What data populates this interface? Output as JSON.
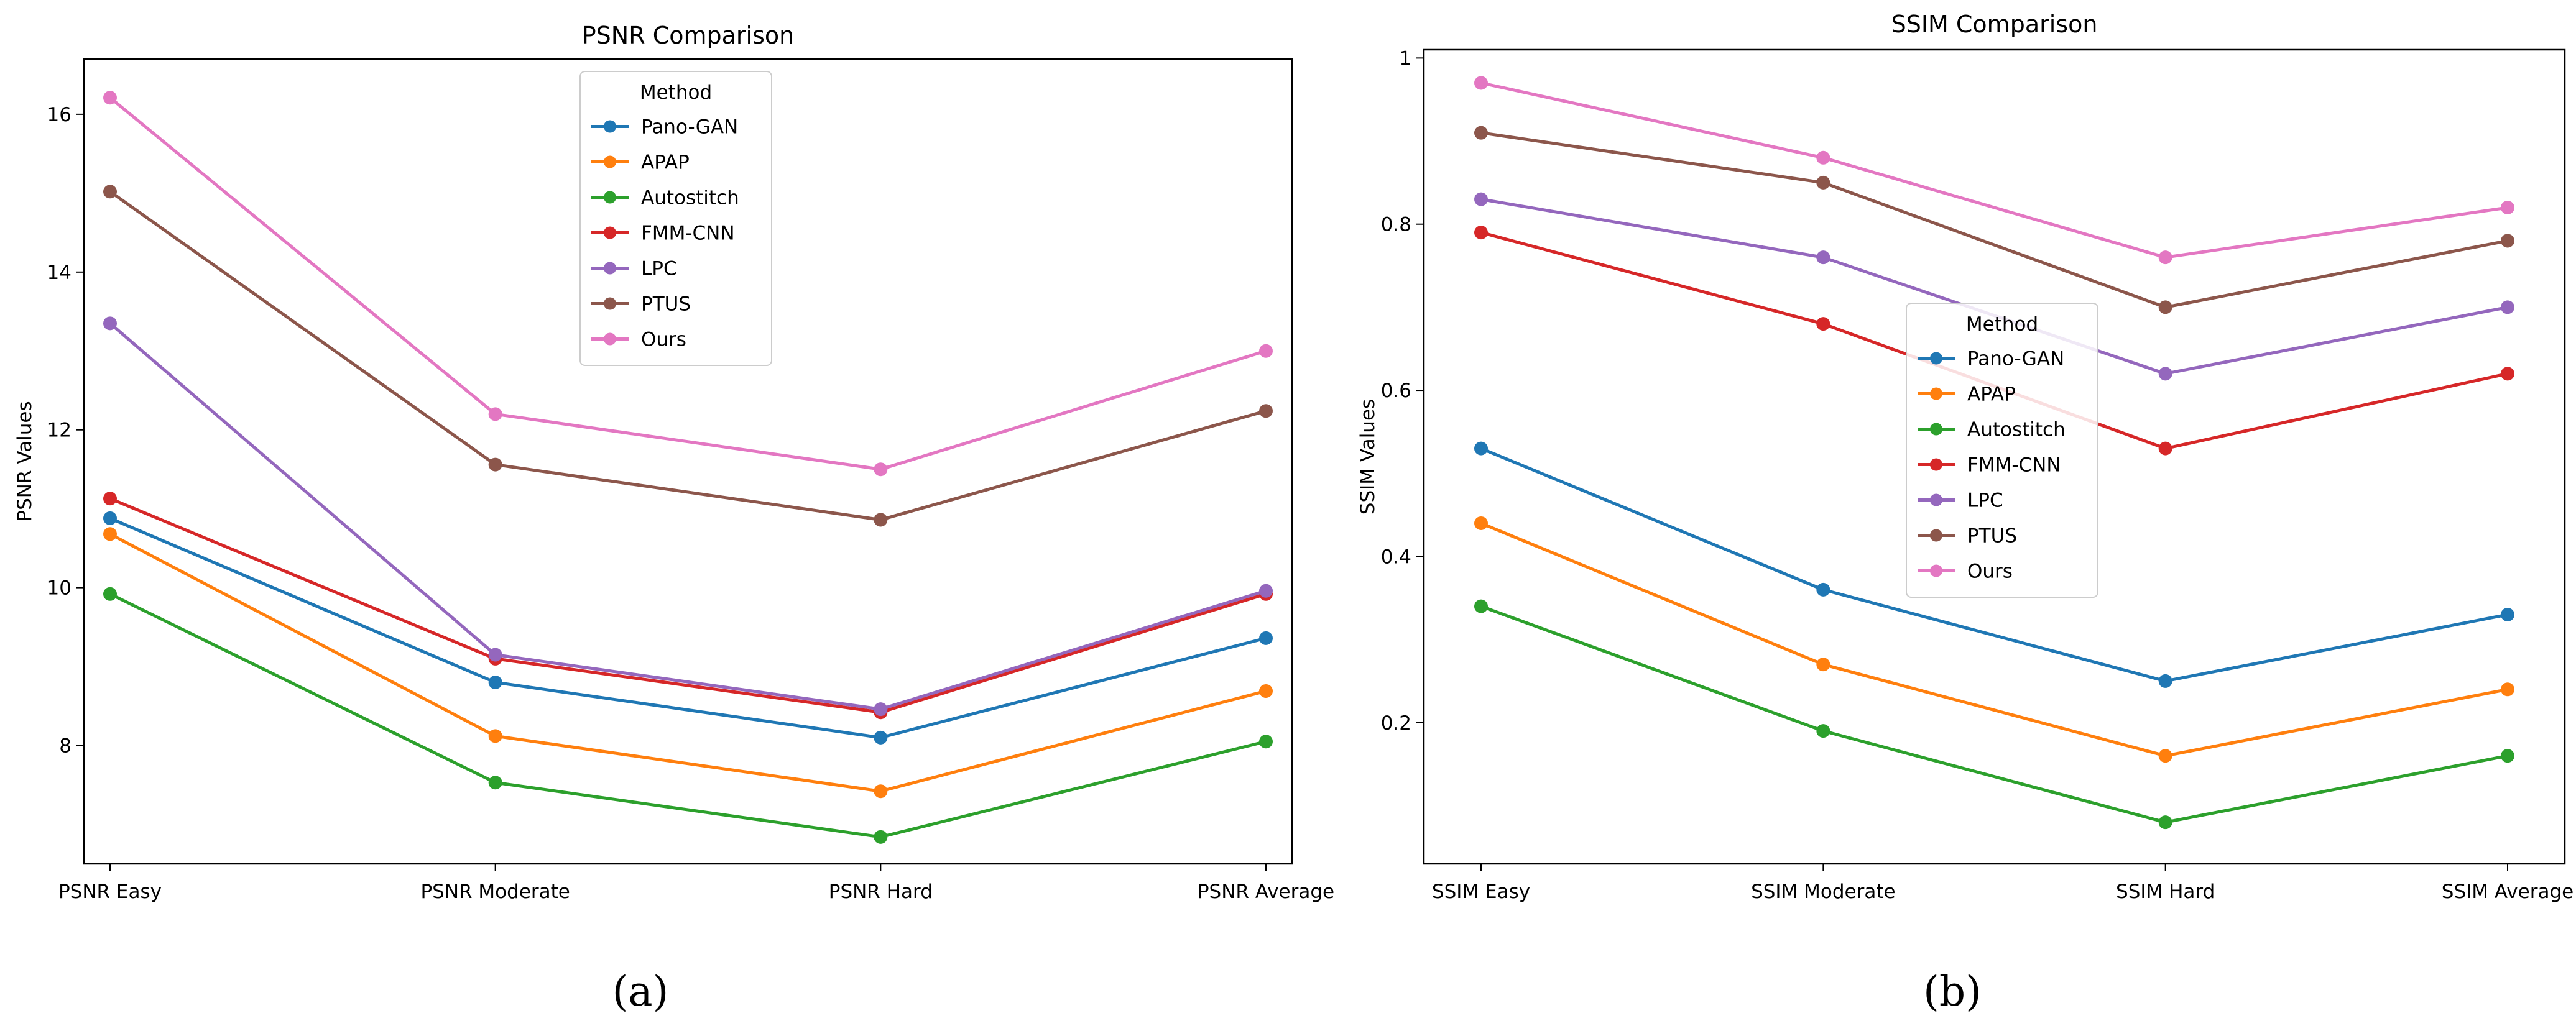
{
  "figure": {
    "captions": [
      "(a)",
      "(b)"
    ]
  },
  "chart_data": [
    {
      "type": "line",
      "title": "PSNR Comparison",
      "xlabel": "",
      "ylabel": "PSNR Values",
      "categories": [
        "PSNR Easy",
        "PSNR Moderate",
        "PSNR Hard",
        "PSNR Average"
      ],
      "ylim": [
        6.5,
        16.7
      ],
      "yticks": [
        8,
        10,
        12,
        14,
        16
      ],
      "legend": {
        "title": "Method",
        "placement": "top-center"
      },
      "series": [
        {
          "name": "Pano-GAN",
          "color": "#1f77b4",
          "values": [
            10.88,
            8.8,
            8.1,
            9.36
          ]
        },
        {
          "name": "APAP",
          "color": "#ff7f0e",
          "values": [
            10.68,
            8.12,
            7.42,
            8.69
          ]
        },
        {
          "name": "Autostitch",
          "color": "#2ca02c",
          "values": [
            9.92,
            7.53,
            6.84,
            8.05
          ]
        },
        {
          "name": "FMM-CNN",
          "color": "#d62728",
          "values": [
            11.13,
            9.1,
            8.42,
            9.92
          ]
        },
        {
          "name": "LPC",
          "color": "#9467bd",
          "values": [
            13.35,
            9.15,
            8.46,
            9.96
          ]
        },
        {
          "name": "PTUS",
          "color": "#8c564b",
          "values": [
            15.02,
            11.56,
            10.86,
            12.24
          ]
        },
        {
          "name": "Ours",
          "color": "#e377c2",
          "values": [
            16.21,
            12.2,
            11.5,
            13.0
          ]
        }
      ]
    },
    {
      "type": "line",
      "title": "SSIM Comparison",
      "xlabel": "",
      "ylabel": "SSIM Values",
      "categories": [
        "SSIM Easy",
        "SSIM Moderate",
        "SSIM Hard",
        "SSIM Average"
      ],
      "ylim": [
        0.03,
        1.01
      ],
      "yticks": [
        0.2,
        0.4,
        0.6,
        0.8,
        1.0
      ],
      "legend": {
        "title": "Method",
        "placement": "center"
      },
      "series": [
        {
          "name": "Pano-GAN",
          "color": "#1f77b4",
          "values": [
            0.53,
            0.36,
            0.25,
            0.33
          ]
        },
        {
          "name": "APAP",
          "color": "#ff7f0e",
          "values": [
            0.44,
            0.27,
            0.16,
            0.24
          ]
        },
        {
          "name": "Autostitch",
          "color": "#2ca02c",
          "values": [
            0.34,
            0.19,
            0.08,
            0.16
          ]
        },
        {
          "name": "FMM-CNN",
          "color": "#d62728",
          "values": [
            0.79,
            0.68,
            0.53,
            0.62
          ]
        },
        {
          "name": "LPC",
          "color": "#9467bd",
          "values": [
            0.83,
            0.76,
            0.62,
            0.7
          ]
        },
        {
          "name": "PTUS",
          "color": "#8c564b",
          "values": [
            0.91,
            0.85,
            0.7,
            0.78
          ]
        },
        {
          "name": "Ours",
          "color": "#e377c2",
          "values": [
            0.97,
            0.88,
            0.76,
            0.82
          ]
        }
      ]
    }
  ]
}
